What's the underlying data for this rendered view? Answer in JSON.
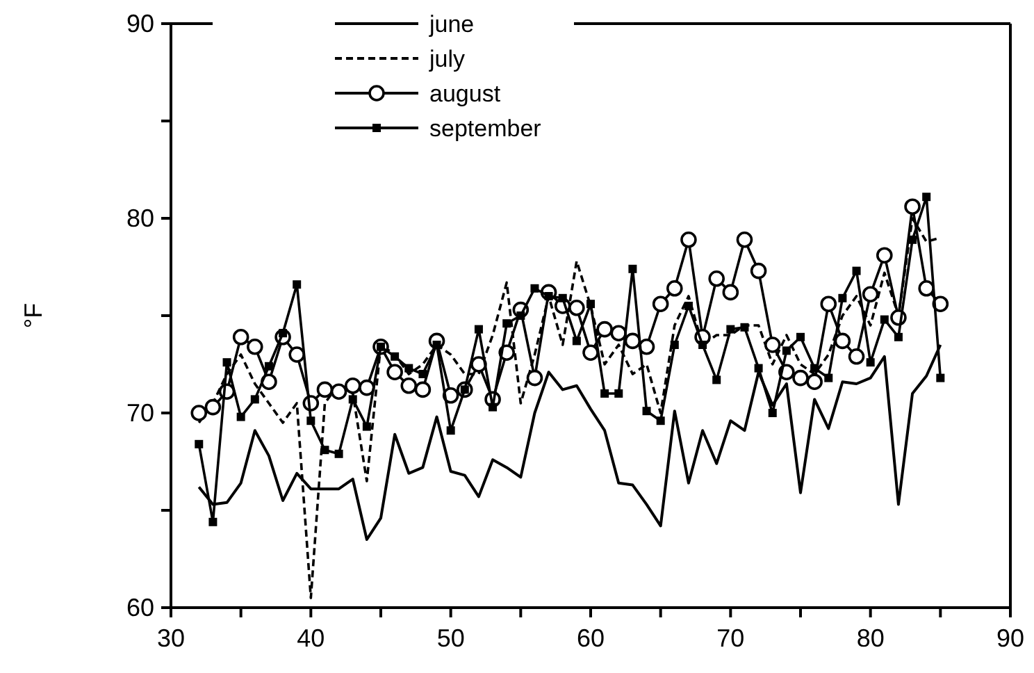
{
  "chart_data": {
    "type": "line",
    "ylabel": "°F",
    "x": [
      32,
      33,
      34,
      35,
      36,
      37,
      38,
      39,
      40,
      41,
      42,
      43,
      44,
      45,
      46,
      47,
      48,
      49,
      50,
      51,
      52,
      53,
      54,
      55,
      56,
      57,
      58,
      59,
      60,
      61,
      62,
      63,
      64,
      65,
      66,
      67,
      68,
      69,
      70,
      71,
      72,
      73,
      74,
      75,
      76,
      77,
      78,
      79,
      80,
      81,
      82,
      83,
      84,
      85
    ],
    "xlim": [
      30,
      90
    ],
    "xticks": [
      30,
      {
        "value": 35,
        "label": null
      },
      40,
      {
        "value": 45,
        "label": null
      },
      50,
      {
        "value": 55,
        "label": null
      },
      60,
      {
        "value": 65,
        "label": null
      },
      70,
      {
        "value": 75,
        "label": null
      },
      80,
      {
        "value": 85,
        "label": null
      },
      90
    ],
    "ylim": [
      60,
      90
    ],
    "yticks": [
      60,
      {
        "value": 65,
        "label": null
      },
      70,
      {
        "value": 75,
        "label": null
      },
      80,
      {
        "value": 85,
        "label": null
      },
      90
    ],
    "grid": false,
    "legend": "top left",
    "series": [
      {
        "name": "june",
        "color": "#000000",
        "marker": "none",
        "line_style": "solid",
        "values": [
          66.2,
          65.3,
          65.4,
          66.4,
          69.1,
          67.8,
          65.5,
          66.9,
          66.1,
          66.1,
          66.1,
          66.6,
          63.5,
          64.6,
          68.9,
          66.9,
          67.2,
          69.8,
          67.0,
          66.8,
          65.7,
          67.6,
          67.2,
          66.7,
          70.0,
          72.1,
          71.2,
          71.4,
          70.2,
          69.1,
          66.4,
          66.3,
          65.3,
          64.2,
          70.1,
          66.4,
          69.1,
          67.4,
          69.6,
          69.1,
          72.1,
          70.4,
          71.5,
          65.9,
          70.7,
          69.2,
          71.6,
          71.5,
          71.8,
          72.9,
          65.3,
          71.0,
          71.9,
          73.5
        ]
      },
      {
        "name": "july",
        "color": "#000000",
        "marker": "none",
        "line_style": "dashed",
        "values": [
          69.5,
          70.5,
          72,
          73,
          71.5,
          70.5,
          69.5,
          70.5,
          60.5,
          70.5,
          71.5,
          71,
          66.5,
          73.5,
          73,
          72,
          72.5,
          73.5,
          73,
          72,
          72,
          74,
          76.7,
          70.5,
          73,
          76,
          73.5,
          77.8,
          75.5,
          72.5,
          73.5,
          72,
          72.5,
          70,
          74.5,
          76,
          73.5,
          74,
          74,
          74.5,
          74.5,
          72.5,
          74,
          72.5,
          72,
          73,
          75,
          76,
          74.5,
          77.2,
          75,
          80,
          78.8,
          79
        ]
      },
      {
        "name": "august",
        "color": "#000000",
        "marker": "circle",
        "line_style": "solid",
        "values": [
          70,
          70.3,
          71.1,
          73.9,
          73.4,
          71.6,
          73.9,
          73,
          70.5,
          71.2,
          71.1,
          71.4,
          71.3,
          73.4,
          72.1,
          71.4,
          71.2,
          73.7,
          70.9,
          71.2,
          72.5,
          70.7,
          73.1,
          75.3,
          71.8,
          76.2,
          75.5,
          75.4,
          73.1,
          74.3,
          74.1,
          73.7,
          73.4,
          75.6,
          76.4,
          78.9,
          73.9,
          76.9,
          76.2,
          78.9,
          77.3,
          73.5,
          72.1,
          71.8,
          71.6,
          75.6,
          73.7,
          72.9,
          76.1,
          78.1,
          74.9,
          80.6,
          76.4,
          75.6
        ]
      },
      {
        "name": "september",
        "color": "#000000",
        "marker": "square",
        "line_style": "solid",
        "values": [
          68.4,
          64.4,
          72.6,
          69.8,
          70.7,
          72.4,
          74.1,
          76.6,
          69.6,
          68.1,
          67.9,
          70.7,
          69.3,
          73.4,
          72.9,
          72.3,
          72,
          73.5,
          69.1,
          71.2,
          74.3,
          70.3,
          74.6,
          75,
          76.4,
          76,
          75.9,
          73.7,
          75.6,
          71,
          71,
          77.4,
          70.1,
          69.6,
          73.5,
          75.5,
          73.5,
          71.7,
          74.3,
          74.4,
          72.3,
          70,
          73.2,
          73.9,
          72.3,
          71.8,
          75.9,
          77.3,
          72.6,
          74.8,
          73.9,
          78.9,
          81.1,
          71.8
        ]
      }
    ]
  }
}
